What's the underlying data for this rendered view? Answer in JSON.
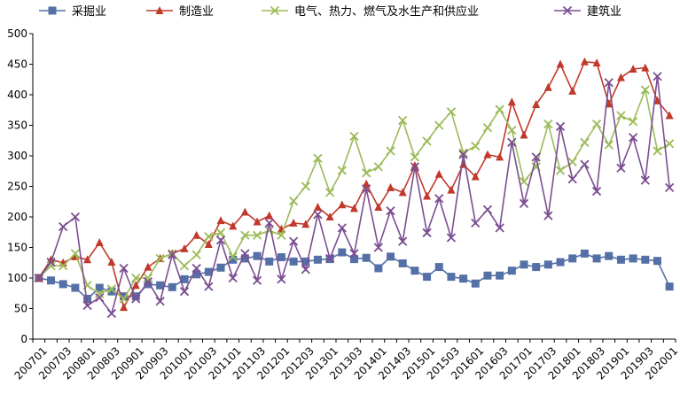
{
  "chart_data": {
    "type": "line",
    "title": "",
    "xlabel": "",
    "ylabel": "",
    "ylim": [
      0,
      500
    ],
    "y_ticks": [
      0,
      50,
      100,
      150,
      200,
      250,
      300,
      350,
      400,
      450,
      500
    ],
    "grid": false,
    "legend_position": "top",
    "x_tick_labels": [
      "200701",
      "200703",
      "200801",
      "200803",
      "200901",
      "200903",
      "201001",
      "201003",
      "201101",
      "201103",
      "201201",
      "201203",
      "201301",
      "201303",
      "201401",
      "201403",
      "201501",
      "201503",
      "201601",
      "201603",
      "201701",
      "201703",
      "201801",
      "201803",
      "201901",
      "201903",
      "202001"
    ],
    "x": [
      "200701",
      "200702",
      "200703",
      "200704",
      "200801",
      "200802",
      "200803",
      "200804",
      "200901",
      "200902",
      "200903",
      "200904",
      "201001",
      "201002",
      "201003",
      "201004",
      "201101",
      "201102",
      "201103",
      "201104",
      "201201",
      "201202",
      "201203",
      "201204",
      "201301",
      "201302",
      "201303",
      "201304",
      "201401",
      "201402",
      "201403",
      "201404",
      "201501",
      "201502",
      "201503",
      "201504",
      "201601",
      "201602",
      "201603",
      "201604",
      "201701",
      "201702",
      "201703",
      "201704",
      "201801",
      "201802",
      "201803",
      "201804",
      "201901",
      "201902",
      "201903",
      "201904",
      "202001"
    ],
    "series": [
      {
        "name": "采掘业",
        "color": "#5470A6",
        "marker": "square",
        "values": [
          100,
          96,
          90,
          84,
          66,
          84,
          78,
          70,
          70,
          90,
          88,
          85,
          98,
          106,
          110,
          117,
          130,
          132,
          136,
          127,
          134,
          127,
          127,
          130,
          131,
          142,
          131,
          133,
          116,
          135,
          124,
          112,
          102,
          118,
          102,
          99,
          91,
          104,
          104,
          112,
          122,
          118,
          122,
          126,
          132,
          140,
          132,
          136,
          130,
          132,
          130,
          128,
          86
        ]
      },
      {
        "name": "制造业",
        "color": "#C0392B",
        "marker": "triangle",
        "values": [
          100,
          130,
          125,
          135,
          130,
          158,
          126,
          52,
          88,
          118,
          132,
          140,
          148,
          170,
          155,
          194,
          185,
          208,
          192,
          202,
          180,
          190,
          188,
          216,
          200,
          220,
          214,
          254,
          216,
          248,
          240,
          284,
          234,
          270,
          244,
          286,
          266,
          302,
          298,
          388,
          334,
          384,
          412,
          450,
          406,
          454,
          452,
          385,
          428,
          442,
          444,
          390,
          366
        ]
      },
      {
        "name": "电气、热力、燃气及水生产和供应业",
        "color": "#9BBB59",
        "marker": "x",
        "values": [
          100,
          120,
          120,
          140,
          88,
          74,
          82,
          66,
          100,
          100,
          132,
          140,
          120,
          138,
          168,
          174,
          135,
          170,
          170,
          178,
          170,
          226,
          250,
          296,
          240,
          276,
          332,
          272,
          282,
          308,
          358,
          298,
          324,
          350,
          372,
          305,
          316,
          346,
          376,
          342,
          258,
          282,
          352,
          276,
          290,
          322,
          352,
          318,
          366,
          356,
          408,
          308,
          320
        ]
      },
      {
        "name": "建筑业",
        "color": "#7B4E91",
        "marker": "x",
        "values": [
          100,
          126,
          184,
          200,
          55,
          68,
          42,
          116,
          66,
          94,
          62,
          138,
          78,
          116,
          86,
          162,
          100,
          140,
          96,
          190,
          98,
          160,
          114,
          204,
          132,
          182,
          140,
          246,
          150,
          210,
          160,
          282,
          174,
          230,
          166,
          302,
          190,
          212,
          182,
          322,
          222,
          298,
          202,
          348,
          262,
          286,
          242,
          420,
          280,
          330,
          260,
          430,
          248
        ]
      }
    ]
  }
}
